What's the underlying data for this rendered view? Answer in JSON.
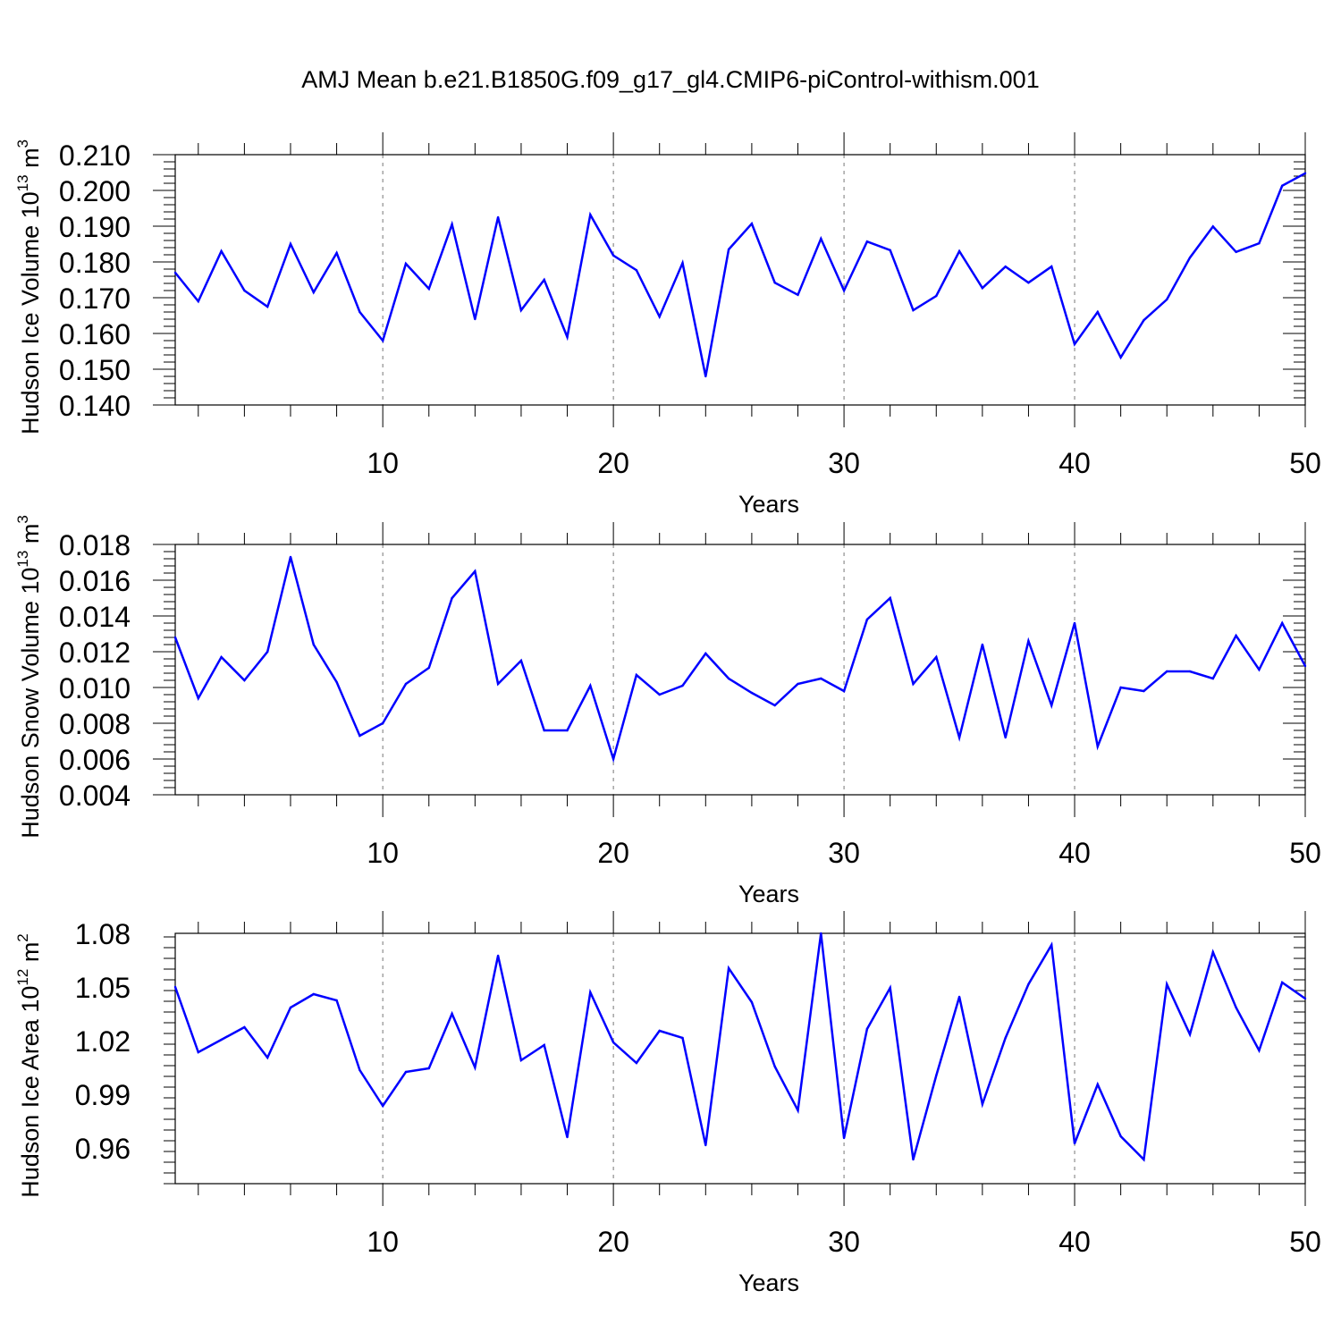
{
  "title": "AMJ Mean b.e21.B1850G.f09_g17_gl4.CMIP6-piControl-withism.001",
  "colors": {
    "line": "#0000ff",
    "axis": "#000000",
    "grid": "#777777"
  },
  "chart_data": [
    {
      "type": "line",
      "title": "",
      "xlabel": "Years",
      "ylabel": {
        "name": "Hudson Ice Volume",
        "base": "10",
        "exp": "13",
        "unit": "m",
        "unit_exp": "3"
      },
      "xlim": [
        1,
        50
      ],
      "ylim": [
        0.14,
        0.21
      ],
      "xticks": [
        10,
        20,
        30,
        40,
        50
      ],
      "yticks": [
        "0.140",
        "0.150",
        "0.160",
        "0.170",
        "0.180",
        "0.190",
        "0.200",
        "0.210"
      ],
      "grid": "vertical dashed at major x ticks",
      "series": [
        {
          "name": "Hudson Ice Volume",
          "x": [
            1,
            2,
            3,
            4,
            5,
            6,
            7,
            8,
            9,
            10,
            11,
            12,
            13,
            14,
            15,
            16,
            17,
            18,
            19,
            20,
            21,
            22,
            23,
            24,
            25,
            26,
            27,
            28,
            29,
            30,
            31,
            32,
            33,
            34,
            35,
            36,
            37,
            38,
            39,
            40,
            41,
            42,
            43,
            44,
            45,
            46,
            47,
            48,
            49,
            50
          ],
          "values": [
            0.177,
            0.169,
            0.183,
            0.172,
            0.1675,
            0.185,
            0.1715,
            0.1825,
            0.166,
            0.158,
            0.1795,
            0.1725,
            0.1905,
            0.164,
            0.1925,
            0.1665,
            0.175,
            0.159,
            0.1932,
            0.1818,
            0.1777,
            0.1647,
            0.1797,
            0.148,
            0.1835,
            0.1907,
            0.1742,
            0.1708,
            0.1865,
            0.172,
            0.1857,
            0.1833,
            0.1665,
            0.1705,
            0.183,
            0.1727,
            0.1787,
            0.1742,
            0.1787,
            0.157,
            0.166,
            0.1533,
            0.1637,
            0.1695,
            0.1812,
            0.1899,
            0.1828,
            0.1852,
            0.2013,
            0.2048
          ]
        }
      ]
    },
    {
      "type": "line",
      "title": "",
      "xlabel": "Years",
      "ylabel": {
        "name": "Hudson Snow Volume",
        "base": "10",
        "exp": "13",
        "unit": "m",
        "unit_exp": "3"
      },
      "xlim": [
        1,
        50
      ],
      "ylim": [
        0.004,
        0.018
      ],
      "xticks": [
        10,
        20,
        30,
        40,
        50
      ],
      "yticks": [
        "0.004",
        "0.006",
        "0.008",
        "0.010",
        "0.012",
        "0.014",
        "0.016",
        "0.018"
      ],
      "grid": "vertical dashed at major x ticks",
      "series": [
        {
          "name": "Hudson Snow Volume",
          "x": [
            1,
            2,
            3,
            4,
            5,
            6,
            7,
            8,
            9,
            10,
            11,
            12,
            13,
            14,
            15,
            16,
            17,
            18,
            19,
            20,
            21,
            22,
            23,
            24,
            25,
            26,
            27,
            28,
            29,
            30,
            31,
            32,
            33,
            34,
            35,
            36,
            37,
            38,
            39,
            40,
            41,
            42,
            43,
            44,
            45,
            46,
            47,
            48,
            49,
            50
          ],
          "values": [
            0.0128,
            0.0094,
            0.0117,
            0.0104,
            0.012,
            0.0173,
            0.0124,
            0.0103,
            0.0073,
            0.008,
            0.0102,
            0.0111,
            0.015,
            0.0165,
            0.0102,
            0.0115,
            0.0076,
            0.0076,
            0.0101,
            0.006,
            0.0107,
            0.0096,
            0.0101,
            0.0119,
            0.0105,
            0.0097,
            0.009,
            0.0102,
            0.0105,
            0.0098,
            0.0138,
            0.015,
            0.0102,
            0.0117,
            0.0072,
            0.0124,
            0.0072,
            0.0126,
            0.009,
            0.0136,
            0.0067,
            0.01,
            0.0098,
            0.0109,
            0.0109,
            0.0105,
            0.0129,
            0.011,
            0.0136,
            0.0112
          ]
        }
      ]
    },
    {
      "type": "line",
      "title": "",
      "xlabel": "Years",
      "ylabel": {
        "name": "Hudson Ice Area",
        "base": "10",
        "exp": "12",
        "unit": "m",
        "unit_exp": "2"
      },
      "xlim": [
        1,
        50
      ],
      "ylim": [
        0.94,
        1.08
      ],
      "xticks": [
        10,
        20,
        30,
        40,
        50
      ],
      "yticks": [
        "0.96",
        "0.99",
        "1.02",
        "1.05",
        "1.08"
      ],
      "grid": "vertical dashed at major x ticks",
      "series": [
        {
          "name": "Hudson Ice Area",
          "x": [
            1,
            2,
            3,
            4,
            5,
            6,
            7,
            8,
            9,
            10,
            11,
            12,
            13,
            14,
            15,
            16,
            17,
            18,
            19,
            20,
            21,
            22,
            23,
            24,
            25,
            26,
            27,
            28,
            29,
            30,
            31,
            32,
            33,
            34,
            35,
            36,
            37,
            38,
            39,
            40,
            41,
            42,
            43,
            44,
            45,
            46,
            47,
            48,
            49,
            50
          ],
          "values": [
            1.05,
            1.0135,
            1.0205,
            1.0275,
            1.0105,
            1.0385,
            1.046,
            1.0425,
            1.0035,
            0.9835,
            1.0025,
            1.0045,
            1.035,
            1.005,
            1.0675,
            1.009,
            1.0175,
            0.966,
            1.047,
            1.019,
            1.0075,
            1.0255,
            1.0215,
            0.9615,
            1.0605,
            1.0415,
            1.0055,
            0.981,
            1.08,
            0.9655,
            1.0265,
            1.0495,
            0.9535,
            1.0005,
            1.0445,
            0.9845,
            1.0215,
            1.0515,
            1.0735,
            0.9625,
            0.9955,
            0.9665,
            0.9535,
            1.0515,
            1.0235,
            1.0695,
            1.0385,
            1.0145,
            1.0525,
            1.0435
          ]
        }
      ]
    }
  ]
}
